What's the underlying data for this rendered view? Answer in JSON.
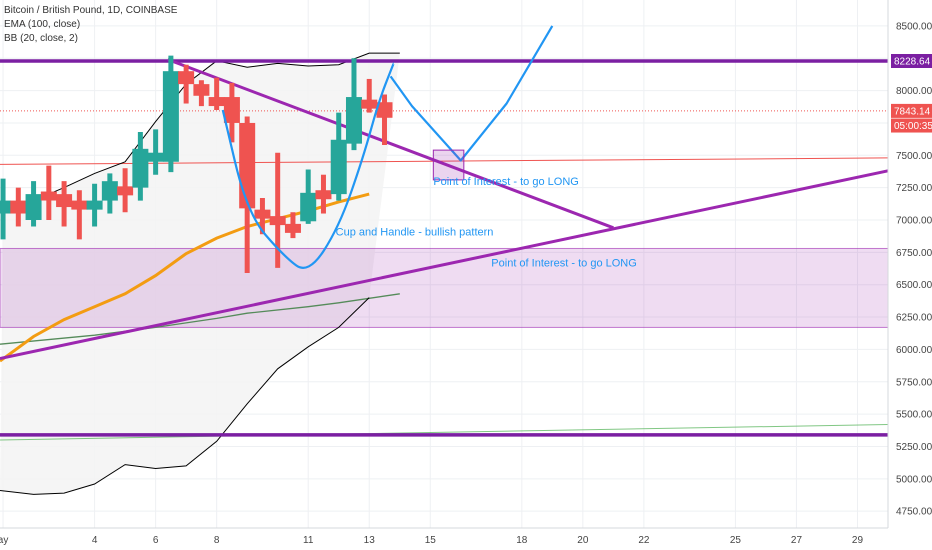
{
  "legend": {
    "symbol": "Bitcoin / British Pound, 1D, COINBASE",
    "ema": "EMA (100, close)",
    "bb": "BB (20, close, 2)"
  },
  "colors": {
    "bull": "#26a69a",
    "bear": "#ef5350",
    "purple": "#9c27b0",
    "ema": "#f39c12",
    "bb": "#000000",
    "blue": "#2196f3",
    "green": "#4caf50"
  },
  "chart_data": {
    "type": "ohlc-bar",
    "y_axis": {
      "ticks": [
        8500,
        8250,
        8000,
        7750,
        7500,
        7250,
        7000,
        6750,
        6500,
        6250,
        6000,
        5750,
        5500,
        5250,
        5000,
        4750
      ],
      "tick_labels": [
        "8500.00",
        "8250.00",
        "8000.00",
        "7750.00",
        "7500.00",
        "7250.00",
        "7000.00",
        "6750.00",
        "6500.00",
        "6250.00",
        "6000.00",
        "5750.00",
        "5500.00",
        "5250.00",
        "5000.00",
        "4750.00"
      ],
      "ylim": [
        4620,
        8700
      ]
    },
    "x_axis": {
      "day_range": [
        0.9,
        30.0
      ],
      "ticks": [
        {
          "day": 1,
          "label": "ay"
        },
        {
          "day": 4,
          "label": "4"
        },
        {
          "day": 6,
          "label": "6"
        },
        {
          "day": 8,
          "label": "8"
        },
        {
          "day": 11,
          "label": "11"
        },
        {
          "day": 13,
          "label": "13"
        },
        {
          "day": 15,
          "label": "15"
        },
        {
          "day": 18,
          "label": "18"
        },
        {
          "day": 20,
          "label": "20"
        },
        {
          "day": 22,
          "label": "22"
        },
        {
          "day": 25,
          "label": "25"
        },
        {
          "day": 27,
          "label": "27"
        },
        {
          "day": 29,
          "label": "29"
        }
      ]
    },
    "price_labels": [
      {
        "text": "8228.64",
        "value": 8228.64,
        "color": "#7b1fa2"
      },
      {
        "text": "7843.14",
        "value": 7843.14,
        "color": "#ef5350"
      },
      {
        "text": "05:00:35",
        "value": 7730,
        "color": "#ef5350"
      }
    ],
    "candles": [
      {
        "day": 1.0,
        "o": 7050,
        "h": 7320,
        "l": 6850,
        "c": 7150
      },
      {
        "day": 1.5,
        "o": 7150,
        "h": 7250,
        "l": 6950,
        "c": 7050
      },
      {
        "day": 2.0,
        "o": 7000,
        "h": 7300,
        "l": 6950,
        "c": 7200
      },
      {
        "day": 2.5,
        "o": 7220,
        "h": 7420,
        "l": 7000,
        "c": 7180
      },
      {
        "day": 3.0,
        "o": 7200,
        "h": 7300,
        "l": 6950,
        "c": 7100
      },
      {
        "day": 3.5,
        "o": 7150,
        "h": 7230,
        "l": 6850,
        "c": 7130
      },
      {
        "day": 4.0,
        "o": 7080,
        "h": 7280,
        "l": 6950,
        "c": 7150
      },
      {
        "day": 4.5,
        "o": 7150,
        "h": 7360,
        "l": 7050,
        "c": 7300
      },
      {
        "day": 5.0,
        "o": 7260,
        "h": 7400,
        "l": 7060,
        "c": 7250
      },
      {
        "day": 5.5,
        "o": 7250,
        "h": 7680,
        "l": 7150,
        "c": 7550
      },
      {
        "day": 6.0,
        "o": 7500,
        "h": 7700,
        "l": 7350,
        "c": 7520
      },
      {
        "day": 6.5,
        "o": 7450,
        "h": 8270,
        "l": 7370,
        "c": 8150
      },
      {
        "day": 7.0,
        "o": 8150,
        "h": 8200,
        "l": 7900,
        "c": 8050
      },
      {
        "day": 7.5,
        "o": 8050,
        "h": 8080,
        "l": 7880,
        "c": 7960
      },
      {
        "day": 8.0,
        "o": 7950,
        "h": 8100,
        "l": 7850,
        "c": 7890
      },
      {
        "day": 8.5,
        "o": 7950,
        "h": 8060,
        "l": 7600,
        "c": 7750
      },
      {
        "day": 9.0,
        "o": 7750,
        "h": 7800,
        "l": 6590,
        "c": 7090
      },
      {
        "day": 9.5,
        "o": 7080,
        "h": 7170,
        "l": 6890,
        "c": 7020
      },
      {
        "day": 10.0,
        "o": 7030,
        "h": 7520,
        "l": 6630,
        "c": 6990
      },
      {
        "day": 10.5,
        "o": 6970,
        "h": 7060,
        "l": 6860,
        "c": 6960
      },
      {
        "day": 11.0,
        "o": 6990,
        "h": 7390,
        "l": 6970,
        "c": 7210
      },
      {
        "day": 11.5,
        "o": 7230,
        "h": 7350,
        "l": 7050,
        "c": 7170
      },
      {
        "day": 12.0,
        "o": 7200,
        "h": 7830,
        "l": 7150,
        "c": 7620
      },
      {
        "day": 12.5,
        "o": 7590,
        "h": 8250,
        "l": 7540,
        "c": 7950
      },
      {
        "day": 13.0,
        "o": 7930,
        "h": 8090,
        "l": 7830,
        "c": 7880
      },
      {
        "day": 13.5,
        "o": 7910,
        "h": 7970,
        "l": 7580,
        "c": 7790
      }
    ],
    "series": [
      {
        "kind": "ema",
        "points": [
          [
            0.9,
            5910
          ],
          [
            2,
            6100
          ],
          [
            3,
            6230
          ],
          [
            4,
            6330
          ],
          [
            5,
            6430
          ],
          [
            6,
            6570
          ],
          [
            7,
            6740
          ],
          [
            8,
            6860
          ],
          [
            9,
            6950
          ],
          [
            10,
            7010
          ],
          [
            11,
            7070
          ],
          [
            12,
            7140
          ],
          [
            13,
            7200
          ]
        ]
      },
      {
        "kind": "bb_upper",
        "points": [
          [
            1,
            7050
          ],
          [
            2,
            7150
          ],
          [
            3,
            7250
          ],
          [
            4,
            7360
          ],
          [
            5,
            7450
          ],
          [
            6,
            7760
          ],
          [
            7,
            8050
          ],
          [
            8,
            8230
          ],
          [
            9,
            8180
          ],
          [
            10,
            8210
          ],
          [
            11,
            8190
          ],
          [
            12,
            8200
          ],
          [
            13,
            8290
          ],
          [
            14,
            8290
          ]
        ]
      },
      {
        "kind": "bb_lower",
        "points": [
          [
            0.9,
            4910
          ],
          [
            2,
            4880
          ],
          [
            3,
            4890
          ],
          [
            4,
            4960
          ],
          [
            5,
            5110
          ],
          [
            6,
            5080
          ],
          [
            7,
            5100
          ],
          [
            8,
            5290
          ],
          [
            9,
            5580
          ],
          [
            10,
            5850
          ],
          [
            11,
            6020
          ],
          [
            12,
            6170
          ],
          [
            13,
            6400
          ]
        ]
      },
      {
        "kind": "sma_green",
        "points": [
          [
            0.9,
            6040
          ],
          [
            4,
            6110
          ],
          [
            6,
            6170
          ],
          [
            8,
            6240
          ],
          [
            9,
            6280
          ],
          [
            11,
            6330
          ],
          [
            12,
            6360
          ],
          [
            14,
            6430
          ]
        ]
      },
      {
        "kind": "sma_green2",
        "points": [
          [
            0.9,
            5300
          ],
          [
            30,
            5420
          ]
        ]
      }
    ],
    "drawings": {
      "resistance_y": 8228.64,
      "support_y": 5340,
      "red_line": {
        "points": [
          [
            0.9,
            7430
          ],
          [
            30,
            7480
          ]
        ]
      },
      "zone": {
        "y1": 6170,
        "y2": 6780
      },
      "descending_trendline": {
        "points": [
          [
            6.4,
            8240
          ],
          [
            21.0,
            6940
          ]
        ]
      },
      "ascending_trendline": {
        "points": [
          [
            0.9,
            5930
          ],
          [
            30,
            7380
          ]
        ]
      },
      "cup": {
        "points": [
          [
            8.2,
            7850
          ],
          [
            9.0,
            7050
          ],
          [
            10.2,
            6720
          ],
          [
            11.0,
            6580
          ],
          [
            12.0,
            6940
          ],
          [
            12.8,
            7480
          ],
          [
            13.3,
            7910
          ],
          [
            13.8,
            8210
          ]
        ]
      },
      "handle": {
        "points": [
          [
            13.7,
            8110
          ],
          [
            14.4,
            7880
          ],
          [
            16.0,
            7460
          ],
          [
            17.5,
            7900
          ],
          [
            19.0,
            8500
          ]
        ]
      },
      "poi_box": {
        "x1": 15.1,
        "x2": 16.1,
        "y1": 7310,
        "y2": 7540
      }
    },
    "annotations": [
      {
        "text": "Point of Interest - to go LONG",
        "day": 15.1,
        "value": 7270,
        "color": "#2196f3"
      },
      {
        "text": "Cup and Handle - bullish pattern",
        "day": 11.9,
        "value": 6880,
        "color": "#2196f3"
      },
      {
        "text": "Point of Interest - to go LONG",
        "day": 17.0,
        "value": 6640,
        "color": "#2196f3"
      }
    ]
  }
}
